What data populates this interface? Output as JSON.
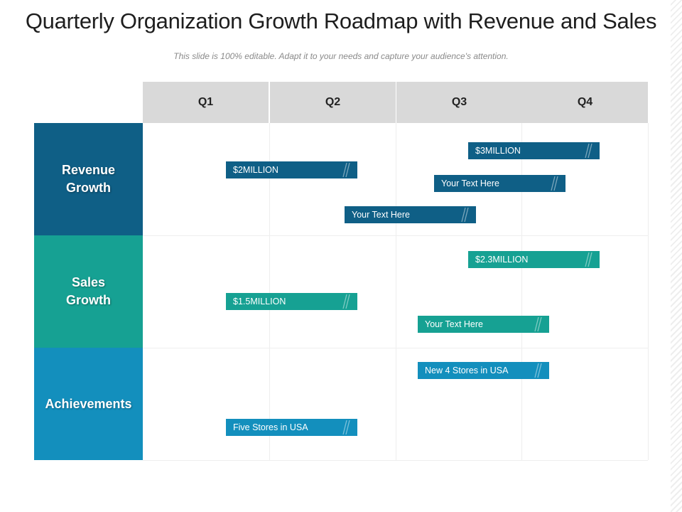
{
  "title": "Quarterly Organization Growth Roadmap with Revenue and Sales",
  "subtitle": "This slide is 100% editable. Adapt it to your needs and capture your audience's attention.",
  "columns": [
    "Q1",
    "Q2",
    "Q3",
    "Q4"
  ],
  "rows": [
    {
      "label": "Revenue Growth",
      "color": "#0f5f86"
    },
    {
      "label": "Sales Growth",
      "color": "#16a193"
    },
    {
      "label": "Achievements",
      "color": "#138fbd"
    }
  ],
  "bars": {
    "revenue": [
      "$3MILLION",
      "$2MILLION",
      "Your Text Here",
      "Your Text Here"
    ],
    "sales": [
      "$2.3MILLION",
      "$1.5MILLION",
      "Your Text Here"
    ],
    "achievements": [
      "New 4 Stores in USA",
      "Five Stores in USA"
    ]
  },
  "colors": {
    "revenue": "#0f5f86",
    "sales": "#16a193",
    "achievements": "#138fbd",
    "header": "#d9d9d9"
  }
}
